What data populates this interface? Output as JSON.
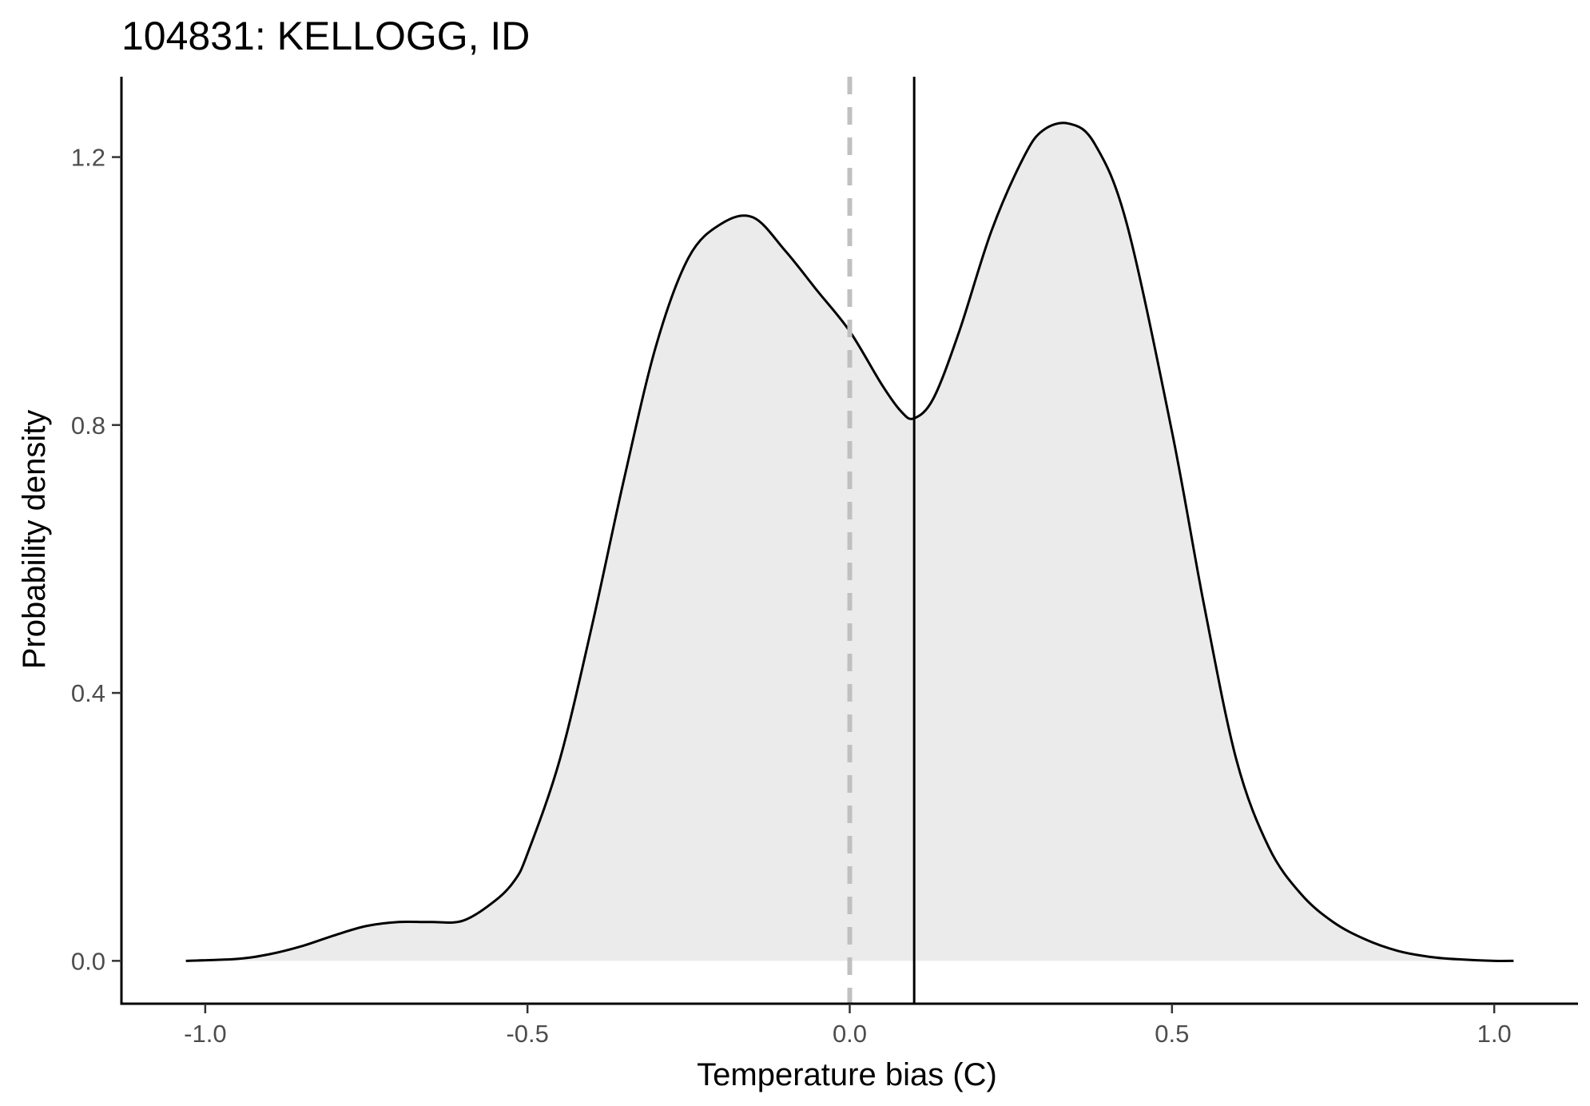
{
  "chart_data": {
    "type": "area",
    "title": "104831: KELLOGG, ID",
    "xlabel": "Temperature bias (C)",
    "ylabel": "Probability density",
    "xlim": [
      -1.13,
      1.13
    ],
    "ylim": [
      -0.064,
      1.32
    ],
    "x_ticks": [
      -1.0,
      -0.5,
      0.0,
      0.5,
      1.0
    ],
    "x_tick_labels": [
      "-1.0",
      "-0.5",
      "0.0",
      "0.5",
      "1.0"
    ],
    "y_ticks": [
      0.0,
      0.4,
      0.8,
      1.2
    ],
    "y_tick_labels": [
      "0.0",
      "0.4",
      "0.8",
      "1.2"
    ],
    "grid": false,
    "fill_color": "#ebebeb",
    "line_color": "#000000",
    "series": [
      {
        "x": [
          -1.03,
          -0.95,
          -0.9,
          -0.85,
          -0.8,
          -0.75,
          -0.7,
          -0.65,
          -0.6,
          -0.55,
          -0.52,
          -0.5,
          -0.45,
          -0.4,
          -0.35,
          -0.3,
          -0.25,
          -0.2,
          -0.15,
          -0.1,
          -0.05,
          0.0,
          0.05,
          0.08,
          0.1,
          0.13,
          0.17,
          0.22,
          0.27,
          0.3,
          0.34,
          0.38,
          0.43,
          0.5,
          0.55,
          0.6,
          0.65,
          0.7,
          0.75,
          0.8,
          0.85,
          0.9,
          0.95,
          1.0,
          1.03
        ],
        "y": [
          0.0,
          0.003,
          0.01,
          0.022,
          0.038,
          0.052,
          0.058,
          0.058,
          0.06,
          0.09,
          0.12,
          0.16,
          0.3,
          0.5,
          0.72,
          0.92,
          1.05,
          1.1,
          1.11,
          1.06,
          1.0,
          0.94,
          0.86,
          0.82,
          0.81,
          0.84,
          0.94,
          1.09,
          1.2,
          1.24,
          1.25,
          1.22,
          1.1,
          0.79,
          0.53,
          0.3,
          0.17,
          0.1,
          0.058,
          0.032,
          0.015,
          0.006,
          0.002,
          0.0,
          0.0
        ]
      }
    ],
    "reference_lines": [
      {
        "x": 0.0,
        "style": "dashed",
        "color": "#c0c0c0"
      },
      {
        "x": 0.1,
        "style": "solid",
        "color": "#000000"
      }
    ]
  }
}
